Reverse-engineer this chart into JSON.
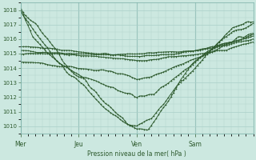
{
  "xlabel": "Pression niveau de la mer( hPa )",
  "bg_color": "#cce8e0",
  "grid_major_color": "#aacfc8",
  "grid_minor_color": "#bddbd4",
  "line_color": "#2d5a2d",
  "ylim": [
    1009.5,
    1018.5
  ],
  "yticks": [
    1010,
    1011,
    1012,
    1013,
    1014,
    1015,
    1016,
    1017,
    1018
  ],
  "day_labels": [
    "Mer",
    "Jeu",
    "Ven",
    "Sam"
  ],
  "day_positions": [
    0,
    48,
    96,
    144
  ],
  "total_points": 192,
  "lines": [
    {
      "waypoints": [
        [
          0,
          1018.0
        ],
        [
          15,
          1016.8
        ],
        [
          30,
          1015.2
        ],
        [
          40,
          1014.0
        ],
        [
          55,
          1013.0
        ],
        [
          70,
          1011.5
        ],
        [
          85,
          1010.5
        ],
        [
          96,
          1009.8
        ],
        [
          105,
          1009.7
        ],
        [
          120,
          1011.5
        ],
        [
          140,
          1014.2
        ],
        [
          160,
          1015.4
        ],
        [
          192,
          1016.5
        ]
      ],
      "noise": 0.15
    },
    {
      "waypoints": [
        [
          0,
          1018.0
        ],
        [
          12,
          1016.5
        ],
        [
          25,
          1015.0
        ],
        [
          38,
          1013.8
        ],
        [
          55,
          1012.5
        ],
        [
          70,
          1011.2
        ],
        [
          85,
          1010.3
        ],
        [
          96,
          1009.9
        ],
        [
          108,
          1010.5
        ],
        [
          130,
          1012.8
        ],
        [
          155,
          1015.0
        ],
        [
          175,
          1016.8
        ],
        [
          192,
          1017.2
        ]
      ],
      "noise": 0.12
    },
    {
      "waypoints": [
        [
          0,
          1018.0
        ],
        [
          10,
          1016.2
        ],
        [
          22,
          1015.0
        ],
        [
          35,
          1014.2
        ],
        [
          50,
          1013.5
        ],
        [
          65,
          1013.0
        ],
        [
          80,
          1012.5
        ],
        [
          96,
          1012.0
        ],
        [
          110,
          1012.2
        ],
        [
          130,
          1013.5
        ],
        [
          155,
          1015.2
        ],
        [
          175,
          1016.5
        ],
        [
          192,
          1017.0
        ]
      ],
      "noise": 0.1
    },
    {
      "waypoints": [
        [
          0,
          1015.2
        ],
        [
          20,
          1015.1
        ],
        [
          48,
          1015.0
        ],
        [
          70,
          1014.9
        ],
        [
          96,
          1015.0
        ],
        [
          120,
          1015.1
        ],
        [
          144,
          1015.2
        ],
        [
          160,
          1015.4
        ],
        [
          192,
          1016.0
        ]
      ],
      "noise": 0.06
    },
    {
      "waypoints": [
        [
          0,
          1015.0
        ],
        [
          30,
          1015.0
        ],
        [
          60,
          1014.8
        ],
        [
          90,
          1014.6
        ],
        [
          100,
          1014.5
        ],
        [
          130,
          1014.8
        ],
        [
          150,
          1015.0
        ],
        [
          170,
          1015.3
        ],
        [
          192,
          1015.8
        ]
      ],
      "noise": 0.05
    },
    {
      "waypoints": [
        [
          0,
          1015.5
        ],
        [
          30,
          1015.3
        ],
        [
          60,
          1015.0
        ],
        [
          96,
          1014.8
        ],
        [
          130,
          1015.0
        ],
        [
          160,
          1015.5
        ],
        [
          192,
          1016.2
        ]
      ],
      "noise": 0.05
    },
    {
      "waypoints": [
        [
          0,
          1014.5
        ],
        [
          20,
          1014.3
        ],
        [
          48,
          1014.0
        ],
        [
          70,
          1013.8
        ],
        [
          90,
          1013.5
        ],
        [
          96,
          1013.2
        ],
        [
          110,
          1013.5
        ],
        [
          130,
          1014.2
        ],
        [
          155,
          1015.0
        ],
        [
          175,
          1015.8
        ],
        [
          192,
          1016.3
        ]
      ],
      "noise": 0.08
    }
  ]
}
